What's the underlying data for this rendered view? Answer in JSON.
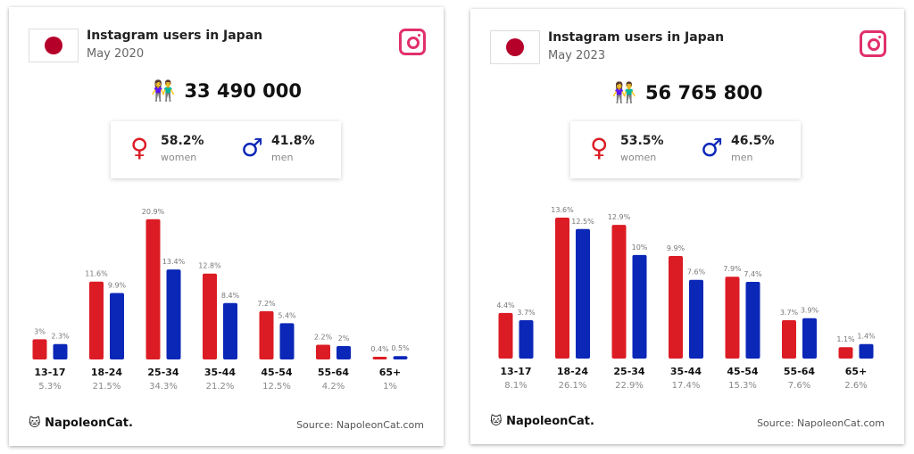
{
  "cards": [
    {
      "title": "Instagram users in Japan",
      "date": "May 2020",
      "users": "33 490 000",
      "women_pct": "58.2%",
      "women_label": "women",
      "men_pct": "41.8%",
      "men_label": "men",
      "logo": "NapoleonCat.",
      "source": "Source: NapoleonCat.com"
    },
    {
      "title": "Instagram users in Japan",
      "date": "May 2023",
      "users": "56 765 800",
      "women_pct": "53.5%",
      "women_label": "women",
      "men_pct": "46.5%",
      "men_label": "men",
      "logo": "NapoleonCat.",
      "source": "Source: NapoleonCat.com"
    }
  ],
  "colors": {
    "women": "#dc1c24",
    "men": "#0b27b8"
  },
  "chart_data": [
    {
      "type": "bar",
      "title": "Instagram users in Japan, May 2020",
      "categories": [
        "13-17",
        "18-24",
        "25-34",
        "35-44",
        "45-54",
        "55-64",
        "65+"
      ],
      "totals": [
        "5.3%",
        "21.5%",
        "34.3%",
        "21.2%",
        "12.5%",
        "4.2%",
        "1%"
      ],
      "series": [
        {
          "name": "women",
          "values": [
            3,
            11.6,
            20.9,
            12.8,
            7.2,
            2.2,
            0.4
          ],
          "labels": [
            "3%",
            "11.6%",
            "20.9%",
            "12.8%",
            "7.2%",
            "2.2%",
            "0.4%"
          ]
        },
        {
          "name": "men",
          "values": [
            2.3,
            9.9,
            13.4,
            8.4,
            5.4,
            2,
            0.5
          ],
          "labels": [
            "2.3%",
            "9.9%",
            "13.4%",
            "8.4%",
            "5.4%",
            "2%",
            "0.5%"
          ]
        }
      ],
      "ylim": [
        0,
        21
      ]
    },
    {
      "type": "bar",
      "title": "Instagram users in Japan, May 2023",
      "categories": [
        "13-17",
        "18-24",
        "25-34",
        "35-44",
        "45-54",
        "55-64",
        "65+"
      ],
      "totals": [
        "8.1%",
        "26.1%",
        "22.9%",
        "17.4%",
        "15.3%",
        "7.6%",
        "2.6%"
      ],
      "series": [
        {
          "name": "women",
          "values": [
            4.4,
            13.6,
            12.9,
            9.9,
            7.9,
            3.7,
            1.1
          ],
          "labels": [
            "4.4%",
            "13.6%",
            "12.9%",
            "9.9%",
            "7.9%",
            "3.7%",
            "1.1%"
          ]
        },
        {
          "name": "men",
          "values": [
            3.7,
            12.5,
            10,
            7.6,
            7.4,
            3.9,
            1.4
          ],
          "labels": [
            "3.7%",
            "12.5%",
            "10%",
            "7.6%",
            "7.4%",
            "3.9%",
            "1.4%"
          ]
        }
      ],
      "ylim": [
        0,
        13.6
      ]
    }
  ]
}
